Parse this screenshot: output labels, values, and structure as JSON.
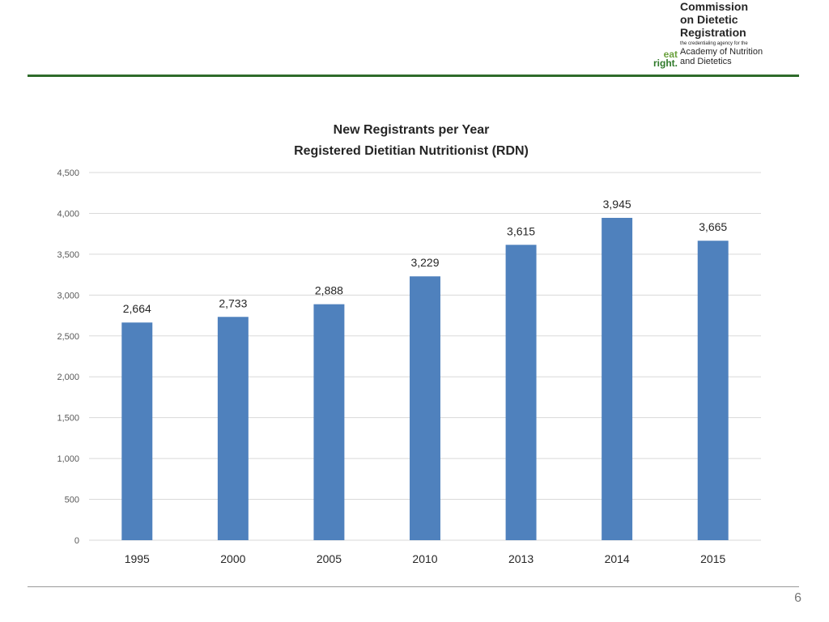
{
  "header": {
    "org_name_lines": [
      "Commission",
      "on Dietetic",
      "Registration"
    ],
    "tagline": "the credentialing agency for the",
    "academy_lines": [
      "Academy of Nutrition",
      "and Dietetics"
    ],
    "eatright_lines": [
      "eat",
      "right."
    ]
  },
  "footer": {
    "page_number": "6"
  },
  "colors": {
    "bar": "#4f81bd",
    "accent_green": "#2e6b2a",
    "grid": "#d9d9d9"
  },
  "chart_data": {
    "type": "bar",
    "title": "New Registrants per Year",
    "subtitle": "Registered Dietitian Nutritionist (RDN)",
    "categories": [
      "1995",
      "2000",
      "2005",
      "2010",
      "2013",
      "2014",
      "2015"
    ],
    "values": [
      2664,
      2733,
      2888,
      3229,
      3615,
      3945,
      3665
    ],
    "data_labels": [
      "2,664",
      "2,733",
      "2,888",
      "3,229",
      "3,615",
      "3,945",
      "3,665"
    ],
    "ylim": [
      0,
      4500
    ],
    "yticks": [
      0,
      500,
      1000,
      1500,
      2000,
      2500,
      3000,
      3500,
      4000,
      4500
    ],
    "ytick_labels": [
      "0",
      "500",
      "1,000",
      "1,500",
      "2,000",
      "2,500",
      "3,000",
      "3,500",
      "4,000",
      "4,500"
    ],
    "grid": true,
    "legend": "none"
  }
}
